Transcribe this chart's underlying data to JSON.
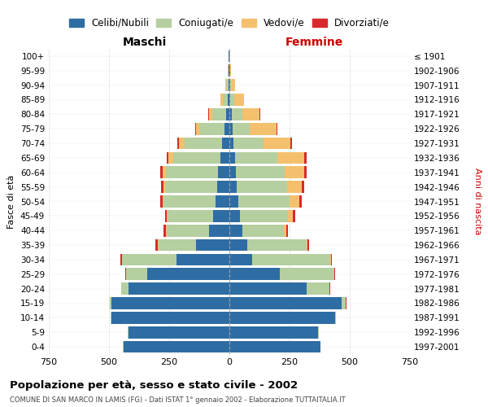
{
  "age_groups": [
    "0-4",
    "5-9",
    "10-14",
    "15-19",
    "20-24",
    "25-29",
    "30-34",
    "35-39",
    "40-44",
    "45-49",
    "50-54",
    "55-59",
    "60-64",
    "65-69",
    "70-74",
    "75-79",
    "80-84",
    "85-89",
    "90-94",
    "95-99",
    "100+"
  ],
  "birth_years": [
    "1997-2001",
    "1992-1996",
    "1987-1991",
    "1982-1986",
    "1977-1981",
    "1972-1976",
    "1967-1971",
    "1962-1966",
    "1957-1961",
    "1952-1956",
    "1947-1951",
    "1942-1946",
    "1937-1941",
    "1932-1936",
    "1927-1931",
    "1922-1926",
    "1917-1921",
    "1912-1916",
    "1907-1911",
    "1902-1906",
    "≤ 1901"
  ],
  "males": {
    "celibe": [
      440,
      420,
      490,
      490,
      420,
      340,
      220,
      140,
      85,
      68,
      58,
      50,
      48,
      38,
      30,
      20,
      15,
      8,
      5,
      3,
      2
    ],
    "coniugato": [
      2,
      2,
      3,
      5,
      28,
      90,
      225,
      155,
      175,
      190,
      215,
      215,
      215,
      195,
      155,
      100,
      55,
      20,
      8,
      2,
      1
    ],
    "vedovo": [
      0,
      0,
      0,
      0,
      0,
      0,
      1,
      1,
      2,
      3,
      5,
      10,
      15,
      20,
      25,
      20,
      15,
      8,
      3,
      1,
      0
    ],
    "divorziato": [
      0,
      0,
      0,
      1,
      2,
      3,
      8,
      12,
      10,
      5,
      8,
      10,
      10,
      8,
      5,
      3,
      2,
      0,
      0,
      0,
      0
    ]
  },
  "females": {
    "nubile": [
      378,
      368,
      438,
      465,
      320,
      210,
      95,
      75,
      55,
      45,
      38,
      32,
      28,
      22,
      18,
      15,
      10,
      5,
      3,
      2,
      1
    ],
    "coniugata": [
      2,
      3,
      5,
      18,
      95,
      225,
      325,
      245,
      170,
      198,
      212,
      208,
      202,
      178,
      125,
      70,
      45,
      15,
      5,
      1,
      0
    ],
    "vedova": [
      0,
      0,
      0,
      1,
      2,
      2,
      2,
      5,
      10,
      20,
      40,
      60,
      80,
      110,
      110,
      110,
      70,
      40,
      15,
      3,
      1
    ],
    "divorziata": [
      0,
      0,
      0,
      1,
      2,
      3,
      4,
      5,
      8,
      10,
      12,
      10,
      12,
      12,
      8,
      5,
      2,
      1,
      0,
      0,
      0
    ]
  },
  "colors": {
    "celibe": "#2e6da4",
    "coniugato": "#b5cfa0",
    "vedovo": "#f5c06d",
    "divorziato": "#d9292b"
  },
  "xlim": 750,
  "title": "Popolazione per età, sesso e stato civile - 2002",
  "subtitle": "COMUNE DI SAN MARCO IN LAMIS (FG) - Dati ISTAT 1° gennaio 2002 - Elaborazione TUTTAITALIA.IT",
  "ylabel_left": "Fasce di età",
  "ylabel_right": "Anni di nascita",
  "xlabel_left": "Maschi",
  "xlabel_right": "Femmine",
  "background_color": "#ffffff",
  "grid_color": "#cccccc"
}
